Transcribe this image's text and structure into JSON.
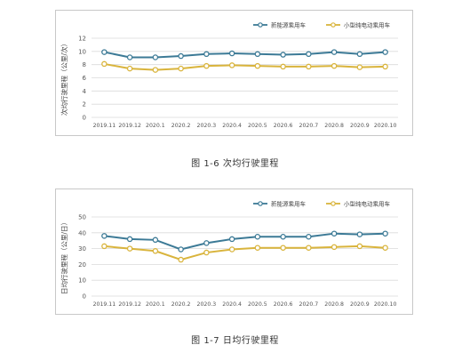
{
  "series_colors": {
    "nev": "#3c7a96",
    "small": "#d9b43c"
  },
  "chart_data": [
    {
      "type": "line",
      "title": "",
      "ylabel": "次均行驶里程（公里/次）",
      "xlabel": "",
      "ylim": [
        0,
        12
      ],
      "yticks": [
        0,
        2,
        4,
        6,
        8,
        10,
        12
      ],
      "grid": true,
      "legend": "top-right",
      "categories": [
        "2019.11",
        "2019.12",
        "2020.1",
        "2020.2",
        "2020.3",
        "2020.4",
        "2020.5",
        "2020.6",
        "2020.7",
        "2020.8",
        "2020.9",
        "2020.10"
      ],
      "series": [
        {
          "name": "新能源乘用车",
          "color": "#3c7a96",
          "values": [
            9.9,
            9.1,
            9.1,
            9.3,
            9.6,
            9.7,
            9.6,
            9.5,
            9.6,
            9.9,
            9.6,
            9.9
          ]
        },
        {
          "name": "小型纯电动乘用车",
          "color": "#d9b43c",
          "values": [
            8.1,
            7.4,
            7.2,
            7.4,
            7.8,
            7.9,
            7.8,
            7.7,
            7.7,
            7.8,
            7.6,
            7.7
          ]
        }
      ],
      "caption": "图 1-6  次均行驶里程"
    },
    {
      "type": "line",
      "title": "",
      "ylabel": "日均行驶里程（公里/日）",
      "xlabel": "",
      "ylim": [
        0,
        50
      ],
      "yticks": [
        0,
        10,
        20,
        30,
        40,
        50
      ],
      "grid": true,
      "legend": "top-right",
      "categories": [
        "2019.11",
        "2019.12",
        "2020.1",
        "2020.2",
        "2020.3",
        "2020.4",
        "2020.5",
        "2020.6",
        "2020.7",
        "2020.8",
        "2020.9",
        "2020.10"
      ],
      "series": [
        {
          "name": "新能源乘用车",
          "color": "#3c7a96",
          "values": [
            38,
            36,
            35.5,
            29.5,
            33.5,
            36,
            37.5,
            37.5,
            37.5,
            39.5,
            39,
            39.5
          ]
        },
        {
          "name": "小型纯电动乘用车",
          "color": "#d9b43c",
          "values": [
            31.5,
            30,
            28.5,
            23,
            27.5,
            29.5,
            30.5,
            30.5,
            30.5,
            31,
            31.5,
            30.5
          ]
        }
      ],
      "caption": "图 1-7  日均行驶里程"
    }
  ]
}
